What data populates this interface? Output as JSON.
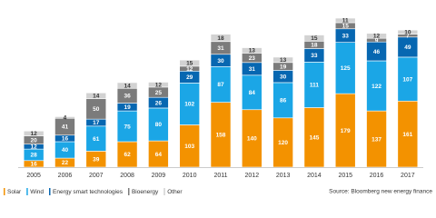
{
  "chart_data": {
    "type": "stacked_bar",
    "categories": [
      "2005",
      "2006",
      "2007",
      "2008",
      "2009",
      "2010",
      "2011",
      "2012",
      "2013",
      "2014",
      "2015",
      "2016",
      "2017"
    ],
    "series": [
      {
        "name": "Solar",
        "color": "#f39200",
        "values": [
          16,
          22,
          39,
          62,
          64,
          103,
          158,
          140,
          120,
          145,
          179,
          137,
          161
        ]
      },
      {
        "name": "Wind",
        "color": "#1ba6e6",
        "values": [
          28,
          40,
          61,
          75,
          80,
          102,
          87,
          84,
          86,
          111,
          125,
          122,
          107
        ]
      },
      {
        "name": "Energy smart technologies",
        "color": "#0767b1",
        "values": [
          12,
          16,
          17,
          19,
          26,
          29,
          30,
          31,
          30,
          33,
          33,
          46,
          49
        ]
      },
      {
        "name": "Bioenergy",
        "color": "#7b7b7b",
        "values": [
          20,
          41,
          50,
          36,
          25,
          12,
          31,
          23,
          19,
          18,
          15,
          9,
          7
        ]
      },
      {
        "name": "Other",
        "color": "#d2d2d2",
        "values": [
          12,
          4,
          14,
          14,
          12,
          15,
          18,
          13,
          13,
          15,
          11,
          12,
          10
        ]
      }
    ],
    "source": "Source: Bloomberg new energy finance"
  }
}
